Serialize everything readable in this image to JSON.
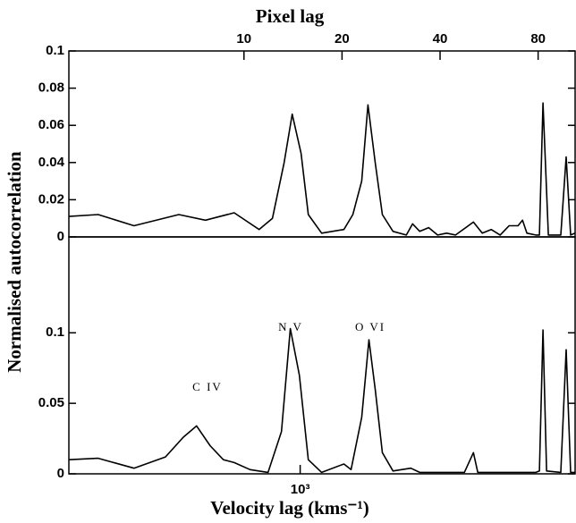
{
  "chart_data": [
    {
      "type": "line",
      "title": "Pixel lag",
      "log_x": true,
      "x2lim": [
        2.9,
        103.9
      ],
      "x2ticks": [
        10,
        20,
        40,
        80
      ],
      "xlim": [
        195,
        6980
      ],
      "ylim": [
        0,
        0.1
      ],
      "yticks": [
        0,
        0.02,
        0.04,
        0.06,
        0.08,
        0.1
      ],
      "color": "#000000",
      "x": [
        195,
        240,
        309,
        424,
        512,
        627,
        748,
        822,
        893,
        945,
        1006,
        1059,
        1164,
        1362,
        1451,
        1545,
        1615,
        1699,
        1787,
        1927,
        2118,
        2214,
        2328,
        2480,
        2642,
        2814,
        2998,
        3401,
        3622,
        3858,
        4110,
        4377,
        4663,
        4812,
        4966,
        5289,
        5424,
        5563,
        5777,
        6310,
        6552,
        6762,
        6980
      ],
      "values": [
        0.011,
        0.012,
        0.006,
        0.012,
        0.009,
        0.013,
        0.004,
        0.01,
        0.04,
        0.066,
        0.045,
        0.012,
        0.002,
        0.004,
        0.012,
        0.03,
        0.071,
        0.04,
        0.012,
        0.003,
        0.001,
        0.007,
        0.003,
        0.005,
        0.001,
        0.002,
        0.001,
        0.008,
        0.002,
        0.004,
        0.001,
        0.006,
        0.006,
        0.009,
        0.002,
        0.001,
        0.001,
        0.072,
        0.001,
        0.001,
        0.043,
        0.001,
        0.002
      ]
    },
    {
      "type": "line",
      "y_label": "Normalised autocorrelation",
      "x_label": "Velocity lag (kms⁻¹)",
      "log_x": true,
      "xlim": [
        195,
        6980
      ],
      "xticks": [
        {
          "value": 1000,
          "label": "10³"
        }
      ],
      "ylim": [
        0,
        0.168
      ],
      "yticks": [
        0,
        0.05,
        0.1
      ],
      "color": "#000000",
      "annotations": [
        "C IV",
        "N V",
        "O VI"
      ],
      "x": [
        195,
        240,
        309,
        386,
        438,
        481,
        529,
        581,
        627,
        702,
        797,
        876,
        933,
        994,
        1059,
        1164,
        1362,
        1433,
        1545,
        1626,
        1699,
        1787,
        1927,
        2186,
        2328,
        3192,
        3401,
        3510,
        5289,
        5424,
        5563,
        5705,
        6310,
        6552,
        6762,
        6980
      ],
      "values": [
        0.01,
        0.011,
        0.004,
        0.012,
        0.026,
        0.034,
        0.02,
        0.01,
        0.008,
        0.003,
        0.001,
        0.03,
        0.103,
        0.07,
        0.01,
        0.001,
        0.007,
        0.003,
        0.04,
        0.095,
        0.06,
        0.015,
        0.002,
        0.004,
        0.001,
        0.001,
        0.015,
        0.001,
        0.001,
        0.002,
        0.102,
        0.002,
        0.001,
        0.088,
        0.001,
        0.001
      ]
    }
  ]
}
